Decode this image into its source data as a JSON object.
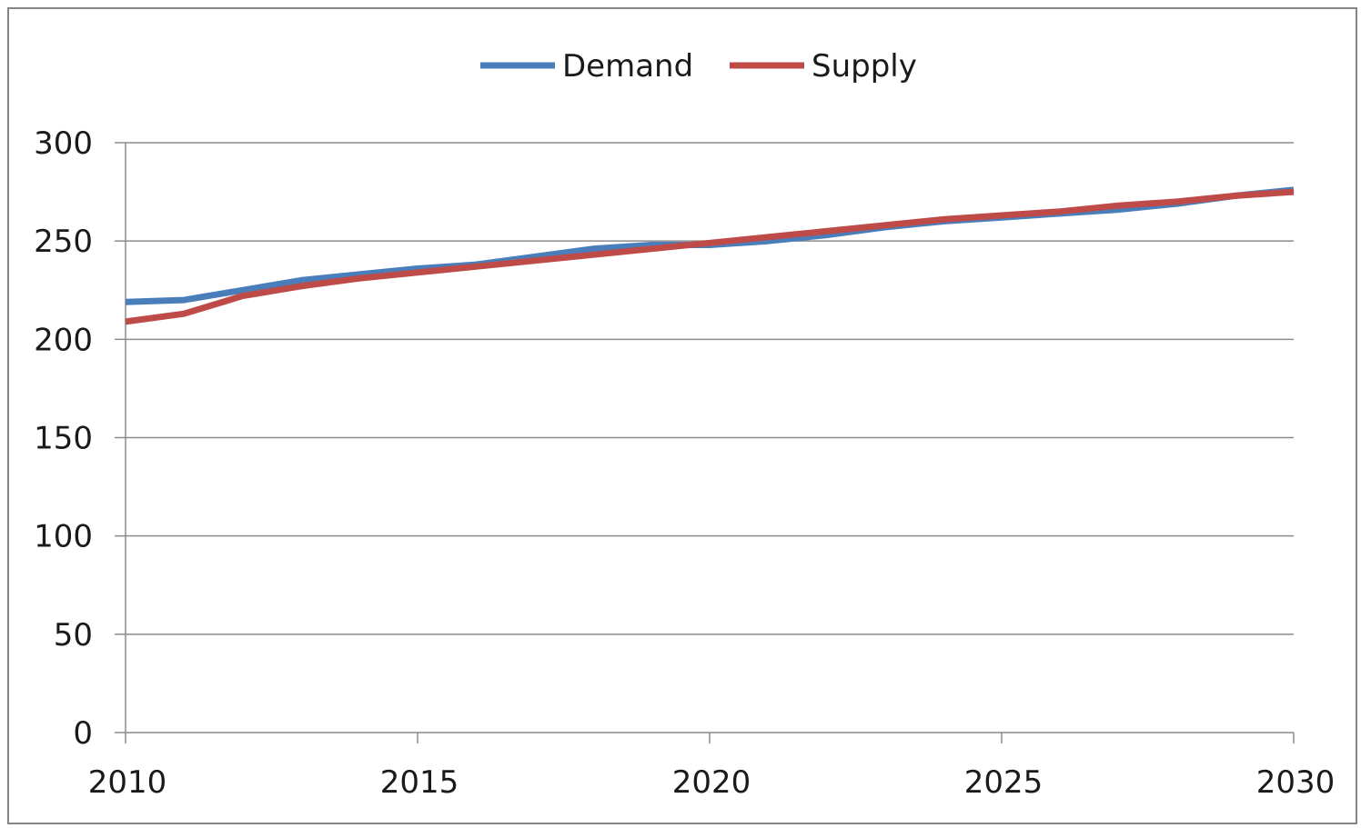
{
  "chart_data": {
    "type": "line",
    "title": "",
    "xlabel": "",
    "ylabel": "",
    "xlim": [
      2010,
      2030
    ],
    "ylim": [
      0,
      300
    ],
    "x_ticks": [
      2010,
      2015,
      2020,
      2025,
      2030
    ],
    "y_ticks": [
      0,
      50,
      100,
      150,
      200,
      250,
      300
    ],
    "grid": true,
    "legend_position": "top",
    "x": [
      2010,
      2011,
      2012,
      2013,
      2014,
      2015,
      2016,
      2017,
      2018,
      2019,
      2020,
      2021,
      2022,
      2023,
      2024,
      2025,
      2026,
      2027,
      2028,
      2029,
      2030
    ],
    "series": [
      {
        "name": "Demand",
        "color": "#4a7ebb",
        "values": [
          219,
          220,
          225,
          230,
          233,
          236,
          238,
          242,
          246,
          248,
          248,
          250,
          253,
          257,
          260,
          262,
          264,
          266,
          269,
          273,
          276
        ]
      },
      {
        "name": "Supply",
        "color": "#be4b48",
        "values": [
          209,
          213,
          222,
          227,
          231,
          234,
          237,
          240,
          243,
          246,
          249,
          252,
          255,
          258,
          261,
          263,
          265,
          268,
          270,
          273,
          275
        ]
      }
    ]
  }
}
